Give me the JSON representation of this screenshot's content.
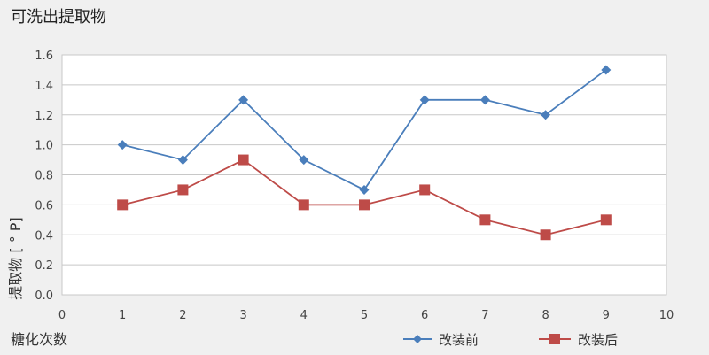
{
  "chart_data": {
    "type": "line",
    "title": "可洗出提取物",
    "xlabel": "糖化次数",
    "ylabel": "提取物 [ ° P]",
    "xlim": [
      0,
      10
    ],
    "ylim": [
      0,
      1.6
    ],
    "x_ticks": [
      "0",
      "1",
      "2",
      "3",
      "4",
      "5",
      "6",
      "7",
      "8",
      "9",
      "10"
    ],
    "y_ticks": [
      "0.0",
      "0.2",
      "0.4",
      "0.6",
      "0.8",
      "1.0",
      "1.2",
      "1.4",
      "1.6"
    ],
    "grid": "horizontal",
    "legend_position": "bottom-right",
    "x": [
      1,
      2,
      3,
      4,
      5,
      6,
      7,
      8,
      9
    ],
    "series": [
      {
        "name": "改装前",
        "marker": "diamond",
        "color": "#4a7ebb",
        "values": [
          1.0,
          0.9,
          1.3,
          0.9,
          0.7,
          1.3,
          1.3,
          1.2,
          1.5
        ]
      },
      {
        "name": "改装后",
        "marker": "square",
        "color": "#be4b48",
        "values": [
          0.6,
          0.7,
          0.9,
          0.6,
          0.6,
          0.7,
          0.5,
          0.4,
          0.5
        ]
      }
    ]
  }
}
